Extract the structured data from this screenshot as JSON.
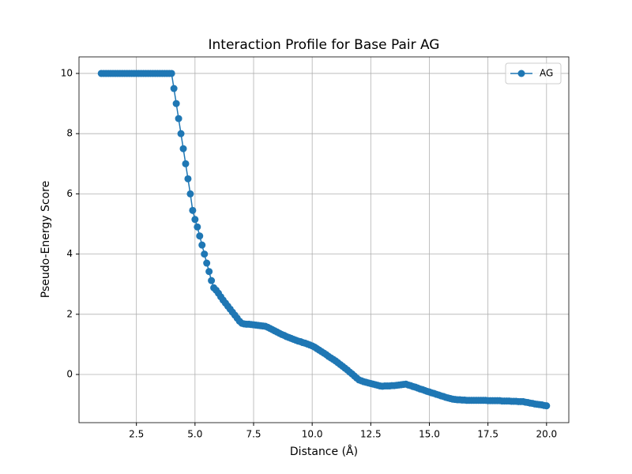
{
  "chart_data": {
    "type": "line",
    "title": "Interaction Profile for Base Pair AG",
    "x_label": "Distance (Å)",
    "y_label": "Pseudo-Energy Score",
    "x": [
      1.0,
      1.1,
      1.2,
      1.3,
      1.4,
      1.5,
      1.6,
      1.7,
      1.8,
      1.9,
      2.0,
      2.1,
      2.2,
      2.3,
      2.4,
      2.5,
      2.6,
      2.7,
      2.8,
      2.9,
      3.0,
      3.1,
      3.2,
      3.3,
      3.4,
      3.5,
      3.6,
      3.7,
      3.8,
      3.9,
      4.0,
      4.1,
      4.2,
      4.3,
      4.4,
      4.5,
      4.6,
      4.7,
      4.8,
      4.9,
      5.0,
      5.1,
      5.2,
      5.3,
      5.4,
      5.5,
      5.6,
      5.7,
      5.8,
      5.9,
      6.0,
      6.1,
      6.2,
      6.3,
      6.4,
      6.5,
      6.6,
      6.7,
      6.8,
      6.9,
      7.0,
      7.1,
      7.2,
      7.3,
      7.4,
      7.5,
      7.6,
      7.7,
      7.8,
      7.9,
      8.0,
      8.1,
      8.2,
      8.3,
      8.4,
      8.5,
      8.6,
      8.7,
      8.8,
      8.9,
      9.0,
      9.1,
      9.2,
      9.3,
      9.4,
      9.5,
      9.6,
      9.7,
      9.8,
      9.9,
      10.0,
      10.1,
      10.2,
      10.3,
      10.4,
      10.5,
      10.6,
      10.7,
      10.8,
      10.9,
      11.0,
      11.1,
      11.2,
      11.3,
      11.4,
      11.5,
      11.6,
      11.7,
      11.8,
      11.9,
      12.0,
      12.1,
      12.2,
      12.3,
      12.4,
      12.5,
      12.6,
      12.7,
      12.8,
      12.9,
      13.0,
      13.1,
      13.2,
      13.3,
      13.4,
      13.5,
      13.6,
      13.7,
      13.8,
      13.9,
      14.0,
      14.1,
      14.2,
      14.3,
      14.4,
      14.5,
      14.6,
      14.7,
      14.8,
      14.9,
      15.0,
      15.1,
      15.2,
      15.3,
      15.4,
      15.5,
      15.6,
      15.7,
      15.8,
      15.9,
      16.0,
      16.1,
      16.2,
      16.3,
      16.4,
      16.5,
      16.6,
      16.7,
      16.8,
      16.9,
      17.0,
      17.1,
      17.2,
      17.3,
      17.4,
      17.5,
      17.6,
      17.7,
      17.8,
      17.9,
      18.0,
      18.1,
      18.2,
      18.3,
      18.4,
      18.5,
      18.6,
      18.7,
      18.8,
      18.9,
      19.0,
      19.1,
      19.2,
      19.3,
      19.4,
      19.5,
      19.6,
      19.7,
      19.8,
      19.9,
      20.0
    ],
    "series": [
      {
        "name": "AG",
        "color": "#1f77b4",
        "values": [
          10,
          10,
          10,
          10,
          10,
          10,
          10,
          10,
          10,
          10,
          10,
          10,
          10,
          10,
          10,
          10,
          10,
          10,
          10,
          10,
          10,
          10,
          10,
          10,
          10,
          10,
          10,
          10,
          10,
          10,
          10,
          9.5,
          9.0,
          8.5,
          8.0,
          7.5,
          7.0,
          6.5,
          6.0,
          5.45,
          5.15,
          4.9,
          4.6,
          4.3,
          4.0,
          3.7,
          3.42,
          3.12,
          2.88,
          2.8,
          2.7,
          2.58,
          2.47,
          2.37,
          2.27,
          2.17,
          2.07,
          1.97,
          1.87,
          1.77,
          1.7,
          1.68,
          1.67,
          1.67,
          1.66,
          1.65,
          1.64,
          1.63,
          1.62,
          1.61,
          1.6,
          1.57,
          1.53,
          1.49,
          1.45,
          1.41,
          1.37,
          1.33,
          1.3,
          1.26,
          1.23,
          1.2,
          1.17,
          1.14,
          1.11,
          1.09,
          1.06,
          1.04,
          1.01,
          0.98,
          0.95,
          0.91,
          0.86,
          0.81,
          0.76,
          0.71,
          0.66,
          0.6,
          0.55,
          0.5,
          0.45,
          0.39,
          0.33,
          0.27,
          0.21,
          0.15,
          0.08,
          0.02,
          -0.05,
          -0.12,
          -0.18,
          -0.21,
          -0.24,
          -0.26,
          -0.28,
          -0.3,
          -0.32,
          -0.34,
          -0.36,
          -0.38,
          -0.39,
          -0.38,
          -0.38,
          -0.38,
          -0.37,
          -0.37,
          -0.36,
          -0.35,
          -0.34,
          -0.33,
          -0.32,
          -0.35,
          -0.37,
          -0.4,
          -0.42,
          -0.45,
          -0.48,
          -0.5,
          -0.53,
          -0.56,
          -0.58,
          -0.61,
          -0.63,
          -0.66,
          -0.68,
          -0.71,
          -0.73,
          -0.76,
          -0.78,
          -0.8,
          -0.82,
          -0.83,
          -0.84,
          -0.84,
          -0.85,
          -0.85,
          -0.86,
          -0.86,
          -0.86,
          -0.86,
          -0.86,
          -0.86,
          -0.86,
          -0.86,
          -0.86,
          -0.87,
          -0.87,
          -0.87,
          -0.87,
          -0.87,
          -0.87,
          -0.88,
          -0.88,
          -0.88,
          -0.88,
          -0.89,
          -0.89,
          -0.89,
          -0.9,
          -0.9,
          -0.9,
          -0.92,
          -0.93,
          -0.95,
          -0.96,
          -0.98,
          -0.99,
          -1.0,
          -1.01,
          -1.03,
          -1.04
        ]
      }
    ],
    "xlim": [
      0.05,
      20.95
    ],
    "ylim": [
      -1.6,
      10.55
    ],
    "xticks": [
      2.5,
      {
        "value": 5,
        "label": "5.0"
      },
      7.5,
      {
        "value": 10,
        "label": "10.0"
      },
      12.5,
      {
        "value": 15,
        "label": "15.0"
      },
      17.5,
      {
        "value": 20,
        "label": "20.0"
      }
    ],
    "yticks": [
      0,
      2,
      4,
      6,
      8,
      10
    ],
    "grid": true,
    "legend": "upper right"
  }
}
